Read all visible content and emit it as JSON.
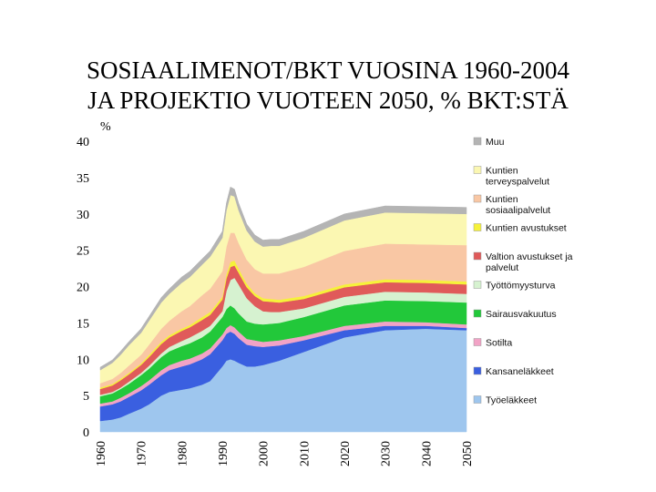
{
  "title_line1": "SOSIAALIMENOT/BKT  VUOSINA 1960-2004",
  "title_line2": "JA PROJEKTIO VUOTEEN 2050,  % BKT:STÄ",
  "chart_data": {
    "type": "area",
    "stacked": true,
    "ylabel": "%",
    "ylim": [
      0,
      40
    ],
    "yticks": [
      "0",
      "5",
      "10",
      "15",
      "20",
      "25",
      "30",
      "35",
      "40"
    ],
    "xlim": [
      1960,
      2050
    ],
    "xticks": [
      "1960",
      "1970",
      "1980",
      "1990",
      "2000",
      "2010",
      "2020",
      "2030",
      "2040",
      "2050"
    ],
    "legend_position": "right",
    "x": [
      1960,
      1963,
      1965,
      1967,
      1970,
      1972,
      1975,
      1977,
      1980,
      1982,
      1985,
      1987,
      1990,
      1991,
      1992,
      1993,
      1994,
      1996,
      1998,
      2000,
      2002,
      2004,
      2010,
      2020,
      2030,
      2040,
      2050
    ],
    "series": [
      {
        "name": "Työeläkkeet",
        "color": "#9ec6ee",
        "values": [
          1.5,
          1.7,
          2.0,
          2.5,
          3.2,
          3.8,
          5.0,
          5.5,
          5.8,
          6.0,
          6.5,
          7.0,
          9.0,
          9.8,
          10.0,
          9.8,
          9.5,
          9.0,
          9.0,
          9.2,
          9.5,
          9.8,
          11.0,
          13.0,
          14.0,
          14.2,
          14.0
        ]
      },
      {
        "name": "Kansaneläkkeet",
        "color": "#3a5fe0",
        "values": [
          2.0,
          2.1,
          2.2,
          2.3,
          2.5,
          2.7,
          2.8,
          3.0,
          3.2,
          3.3,
          3.5,
          3.7,
          3.6,
          3.7,
          3.8,
          3.7,
          3.4,
          3.0,
          2.8,
          2.5,
          2.3,
          2.1,
          1.6,
          1.0,
          0.6,
          0.4,
          0.3
        ]
      },
      {
        "name": "Sotilta",
        "color": "#f2a3c6",
        "values": [
          0.4,
          0.4,
          0.5,
          0.5,
          0.6,
          0.6,
          0.7,
          0.7,
          0.8,
          0.8,
          0.8,
          0.8,
          0.8,
          0.8,
          0.9,
          0.9,
          0.9,
          0.8,
          0.8,
          0.7,
          0.7,
          0.7,
          0.6,
          0.6,
          0.6,
          0.5,
          0.5
        ]
      },
      {
        "name": "Sairausvakuutus",
        "color": "#22c83a",
        "values": [
          1.0,
          1.1,
          1.2,
          1.3,
          1.5,
          1.6,
          1.8,
          1.9,
          2.0,
          2.1,
          2.2,
          2.3,
          2.4,
          2.6,
          2.7,
          2.6,
          2.5,
          2.4,
          2.3,
          2.4,
          2.4,
          2.4,
          2.6,
          2.8,
          2.9,
          2.9,
          3.0
        ]
      },
      {
        "name": "Työttömyysturva",
        "color": "#d6f2d0",
        "values": [
          0.2,
          0.2,
          0.2,
          0.3,
          0.3,
          0.4,
          0.5,
          0.6,
          0.7,
          0.8,
          0.9,
          0.8,
          0.8,
          2.5,
          3.5,
          4.2,
          4.0,
          3.2,
          2.4,
          1.8,
          1.6,
          1.5,
          1.2,
          1.2,
          1.2,
          1.2,
          1.2
        ]
      },
      {
        "name": "Valtion avustukset ja palvelut",
        "color": "#e05a5a",
        "values": [
          0.8,
          0.9,
          1.0,
          1.0,
          1.1,
          1.2,
          1.3,
          1.3,
          1.4,
          1.4,
          1.5,
          1.5,
          1.6,
          1.7,
          1.8,
          1.7,
          1.6,
          1.5,
          1.4,
          1.4,
          1.4,
          1.3,
          1.3,
          1.3,
          1.3,
          1.3,
          1.3
        ]
      },
      {
        "name": "Kuntien avustukset",
        "color": "#f6f23a",
        "values": [
          0.2,
          0.2,
          0.2,
          0.2,
          0.2,
          0.3,
          0.3,
          0.3,
          0.3,
          0.3,
          0.4,
          0.4,
          0.4,
          0.6,
          0.7,
          0.7,
          0.6,
          0.5,
          0.4,
          0.4,
          0.4,
          0.4,
          0.4,
          0.4,
          0.4,
          0.4,
          0.4
        ]
      },
      {
        "name": "Kuntien sosiaalipalvelut",
        "color": "#f9c7a4",
        "values": [
          0.6,
          0.7,
          0.8,
          1.0,
          1.2,
          1.4,
          1.8,
          2.0,
          2.4,
          2.6,
          3.0,
          3.2,
          3.5,
          3.8,
          4.0,
          3.8,
          3.5,
          3.3,
          3.3,
          3.4,
          3.5,
          3.6,
          4.0,
          4.6,
          4.9,
          4.9,
          5.0
        ]
      },
      {
        "name": "Kuntien terveyspalvelut",
        "color": "#fbf7b2",
        "values": [
          1.8,
          2.2,
          2.5,
          2.8,
          3.0,
          3.3,
          3.6,
          3.7,
          3.9,
          4.0,
          4.2,
          4.4,
          4.6,
          5.0,
          5.2,
          5.0,
          4.5,
          4.0,
          3.8,
          3.7,
          3.8,
          3.8,
          4.0,
          4.2,
          4.3,
          4.3,
          4.3
        ]
      },
      {
        "name": "Muu",
        "color": "#b4b4b4",
        "values": [
          0.4,
          0.4,
          0.5,
          0.5,
          0.6,
          0.6,
          0.7,
          0.7,
          0.8,
          0.8,
          0.8,
          0.8,
          0.9,
          1.0,
          1.1,
          1.0,
          1.0,
          0.9,
          0.9,
          0.9,
          0.9,
          0.9,
          0.9,
          0.9,
          0.9,
          0.9,
          0.9
        ]
      }
    ]
  }
}
